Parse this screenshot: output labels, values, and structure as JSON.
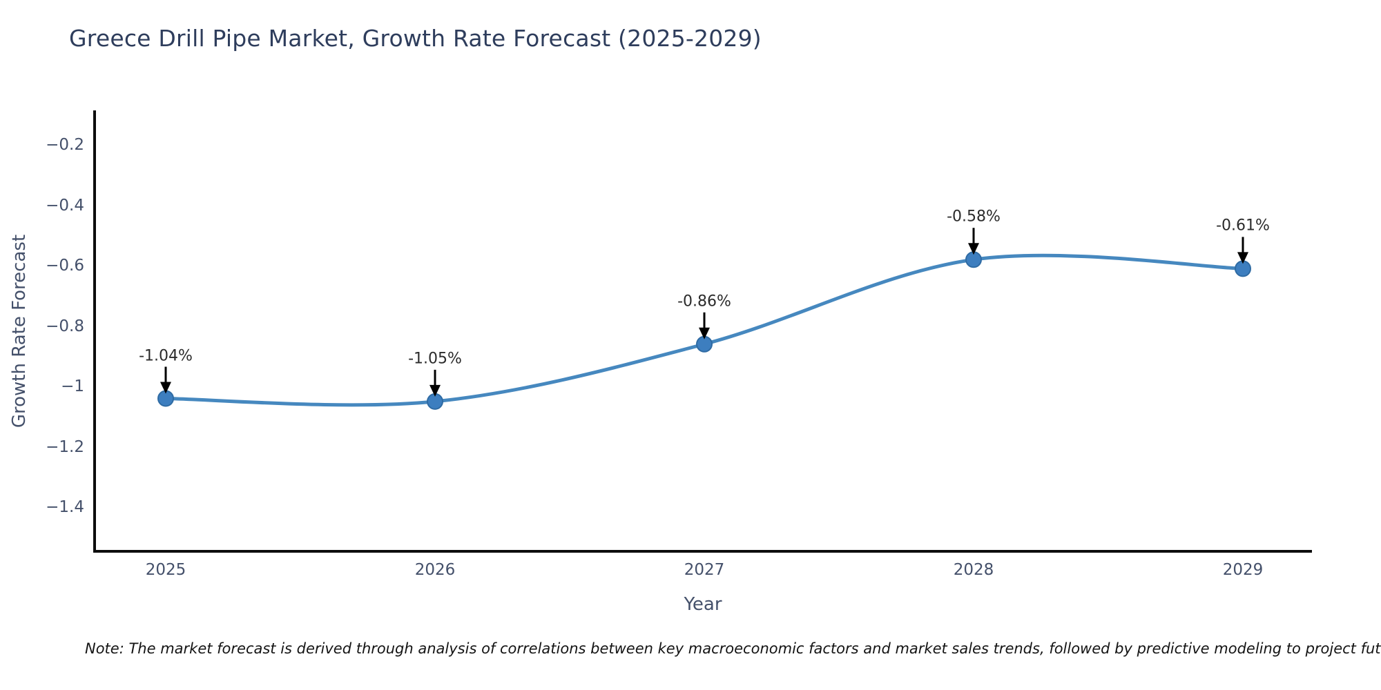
{
  "chart_data": {
    "type": "line",
    "title": "Greece Drill Pipe Market, Growth Rate Forecast (2025-2029)",
    "xlabel": "Year",
    "ylabel": "Growth Rate Forecast",
    "categories": [
      "2025",
      "2026",
      "2027",
      "2028",
      "2029"
    ],
    "series": [
      {
        "name": "Growth Rate Forecast",
        "values": [
          -1.04,
          -1.05,
          -0.86,
          -0.58,
          -0.61
        ],
        "point_labels": [
          "-1.04%",
          "-1.05%",
          "-0.86%",
          "-0.58%",
          "-0.61%"
        ]
      }
    ],
    "y_ticks": [
      {
        "value": -0.2,
        "label": "−0.2"
      },
      {
        "value": -0.4,
        "label": "−0.4"
      },
      {
        "value": -0.6,
        "label": "−0.6"
      },
      {
        "value": -0.8,
        "label": "−0.8"
      },
      {
        "value": -1.0,
        "label": "−1"
      },
      {
        "value": -1.2,
        "label": "−1.2"
      },
      {
        "value": -1.4,
        "label": "−1.4"
      }
    ],
    "ylim": [
      -1.55,
      -0.08
    ],
    "grid": false,
    "legend": "none",
    "line_shape": "spline",
    "colors": {
      "line": "#4688bf",
      "marker_fill": "#3d7ebf",
      "marker_stroke": "#2f6ba3",
      "axis_spine": "#0d0d0d",
      "annotation_text": "#2b2b2b",
      "annotation_arrow": "#000000",
      "title_text": "#2e3d5c",
      "tick_text": "#44506a"
    }
  },
  "note": "Note: The market forecast is derived through analysis of correlations between key macroeconomic factors and market sales trends, followed by predictive modeling to project future sales"
}
